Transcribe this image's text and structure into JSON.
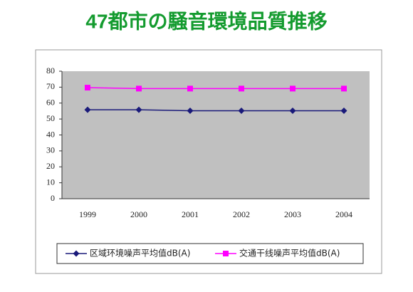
{
  "chart_data": {
    "type": "line",
    "title": "47都市の騒音環境品質推移",
    "categories": [
      "1999",
      "2000",
      "2001",
      "2002",
      "2003",
      "2004"
    ],
    "series": [
      {
        "name": "区域环境噪声平均值dB(A)",
        "color": "#1a1a7a",
        "marker": "diamond",
        "values": [
          55.8,
          55.8,
          55.2,
          55.2,
          55.2,
          55.2
        ]
      },
      {
        "name": "交通干线噪声平均值dB(A)",
        "color": "#ff00ff",
        "marker": "square",
        "values": [
          69.7,
          69.1,
          69.1,
          69.1,
          69.1,
          69.1
        ]
      }
    ],
    "ylim": [
      0,
      80
    ],
    "yticks": [
      0,
      10,
      20,
      30,
      40,
      50,
      60,
      70,
      80
    ],
    "legend": "bottom"
  }
}
